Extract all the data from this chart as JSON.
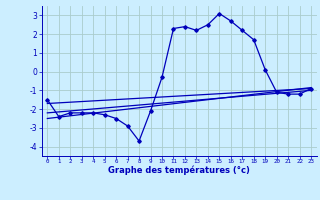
{
  "xlabel": "Graphe des températures (°c)",
  "background_color": "#cceeff",
  "grid_color": "#aacccc",
  "line_color": "#0000bb",
  "x_ticks": [
    0,
    1,
    2,
    3,
    4,
    5,
    6,
    7,
    8,
    9,
    10,
    11,
    12,
    13,
    14,
    15,
    16,
    17,
    18,
    19,
    20,
    21,
    22,
    23
  ],
  "ylim": [
    -4.5,
    3.5
  ],
  "xlim": [
    -0.5,
    23.5
  ],
  "yticks": [
    -4,
    -3,
    -2,
    -1,
    0,
    1,
    2,
    3
  ],
  "main_series": {
    "x": [
      0,
      1,
      2,
      3,
      4,
      5,
      6,
      7,
      8,
      9,
      10,
      11,
      12,
      13,
      14,
      15,
      16,
      17,
      18,
      19,
      20,
      21,
      22,
      23
    ],
    "y": [
      -1.5,
      -2.4,
      -2.2,
      -2.2,
      -2.2,
      -2.3,
      -2.5,
      -2.9,
      -3.7,
      -2.1,
      -0.3,
      2.3,
      2.4,
      2.2,
      2.5,
      3.1,
      2.7,
      2.2,
      1.7,
      0.1,
      -1.1,
      -1.2,
      -1.2,
      -0.9
    ]
  },
  "linear1": {
    "x": [
      0,
      23
    ],
    "y": [
      -1.7,
      -0.9
    ]
  },
  "linear2": {
    "x": [
      0,
      23
    ],
    "y": [
      -2.2,
      -1.0
    ]
  },
  "linear3": {
    "x": [
      0,
      23
    ],
    "y": [
      -2.5,
      -0.85
    ]
  }
}
